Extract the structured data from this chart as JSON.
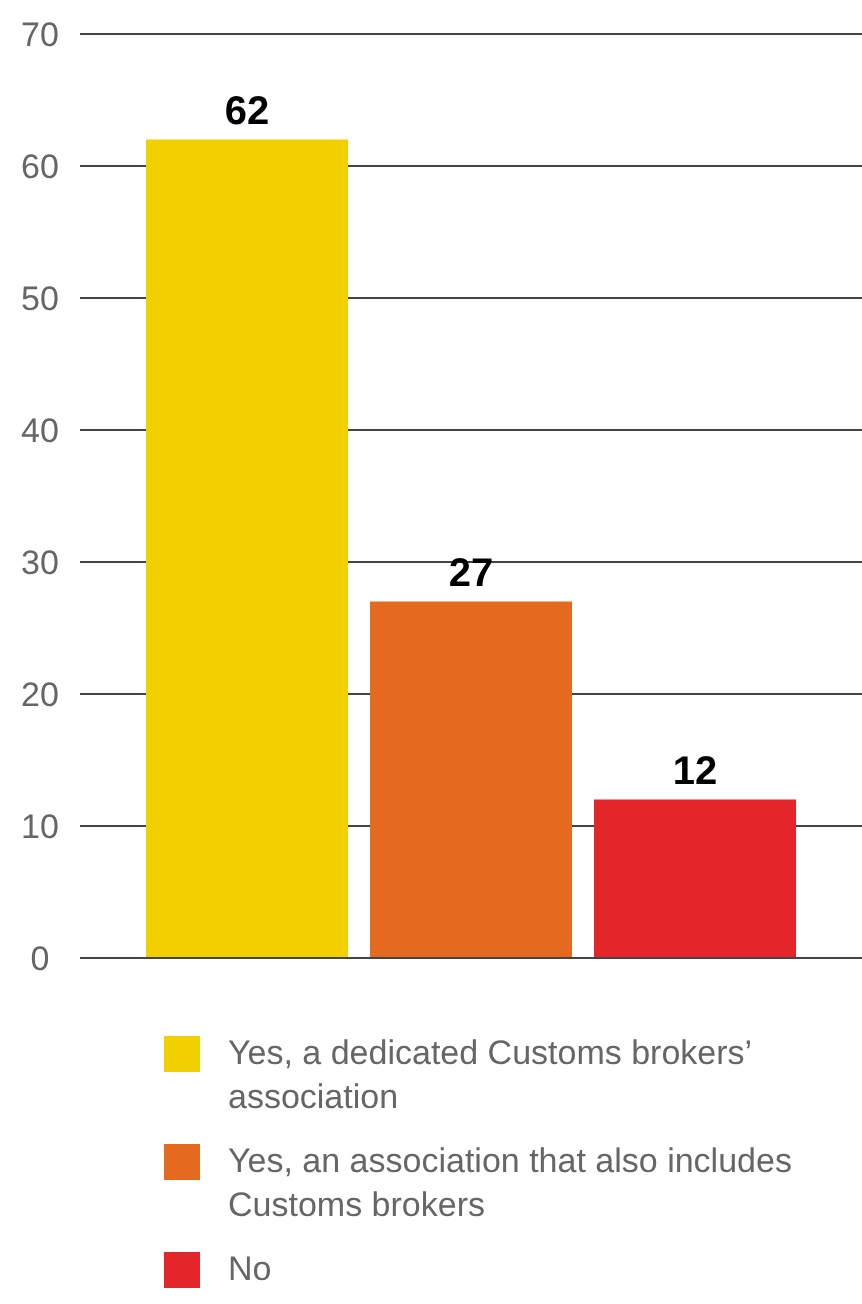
{
  "chart_data": {
    "type": "bar",
    "categories": [
      null
    ],
    "series": [
      {
        "name": "Yes, a dedicated Customs brokers’ association",
        "color": "#f2d000",
        "values": [
          62
        ]
      },
      {
        "name": "Yes, an association that also includes Customs brokers",
        "color": "#e5691e",
        "values": [
          27
        ]
      },
      {
        "name": "No",
        "color": "#e4262a",
        "values": [
          12
        ]
      }
    ],
    "ylim": [
      0,
      70
    ],
    "yticks": [
      0,
      10,
      20,
      30,
      40,
      50,
      60,
      70
    ],
    "grid": "y",
    "legend": "bottom",
    "data_labels": true,
    "tick_labels": "y"
  }
}
